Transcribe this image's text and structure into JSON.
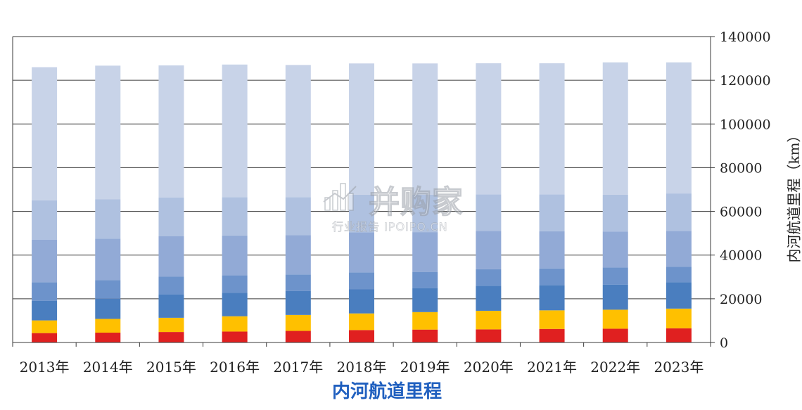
{
  "chart_data": {
    "type": "bar",
    "stacked": true,
    "title": "内河航道里程",
    "ylabel": "内河航道里程（km）",
    "xlabel": "",
    "categories": [
      "2013年",
      "2014年",
      "2015年",
      "2016年",
      "2017年",
      "2018年",
      "2019年",
      "2020年",
      "2021年",
      "2022年",
      "2023年"
    ],
    "ylim": [
      0,
      140000
    ],
    "yticks": [
      0,
      20000,
      40000,
      60000,
      80000,
      100000,
      120000,
      140000
    ],
    "y_axis_side": "right",
    "grid": true,
    "legend": "none",
    "segment_colors": [
      "#e02020",
      "#ffc000",
      "#4a7ebf",
      "#6d93cb",
      "#92aad6",
      "#afc1e0",
      "#c8d3e8"
    ],
    "series": [
      {
        "values": [
          4300,
          4500,
          4800,
          5000,
          5300,
          5700,
          5900,
          6000,
          6200,
          6300,
          6500
        ]
      },
      {
        "values": [
          5800,
          6300,
          6500,
          7000,
          7300,
          7600,
          8000,
          8500,
          8500,
          8700,
          9000
        ]
      },
      {
        "values": [
          9000,
          9200,
          10800,
          10800,
          11000,
          11000,
          11000,
          11500,
          11500,
          11500,
          12000
        ]
      },
      {
        "values": [
          8500,
          8500,
          8000,
          8000,
          7500,
          7800,
          7400,
          7500,
          7700,
          7800,
          7200
        ]
      },
      {
        "values": [
          19500,
          19000,
          18500,
          18200,
          18000,
          18300,
          18200,
          17500,
          17000,
          16500,
          16400
        ]
      },
      {
        "values": [
          18000,
          18000,
          17700,
          17500,
          17400,
          17200,
          17100,
          16800,
          16900,
          16800,
          17100
        ]
      },
      {
        "values": [
          60900,
          61200,
          60500,
          60700,
          60500,
          60100,
          60100,
          60000,
          60000,
          60600,
          60000
        ]
      }
    ]
  },
  "watermark": {
    "brand": "并购家",
    "subtitle": "行业报告 IPOIPO.CN"
  }
}
